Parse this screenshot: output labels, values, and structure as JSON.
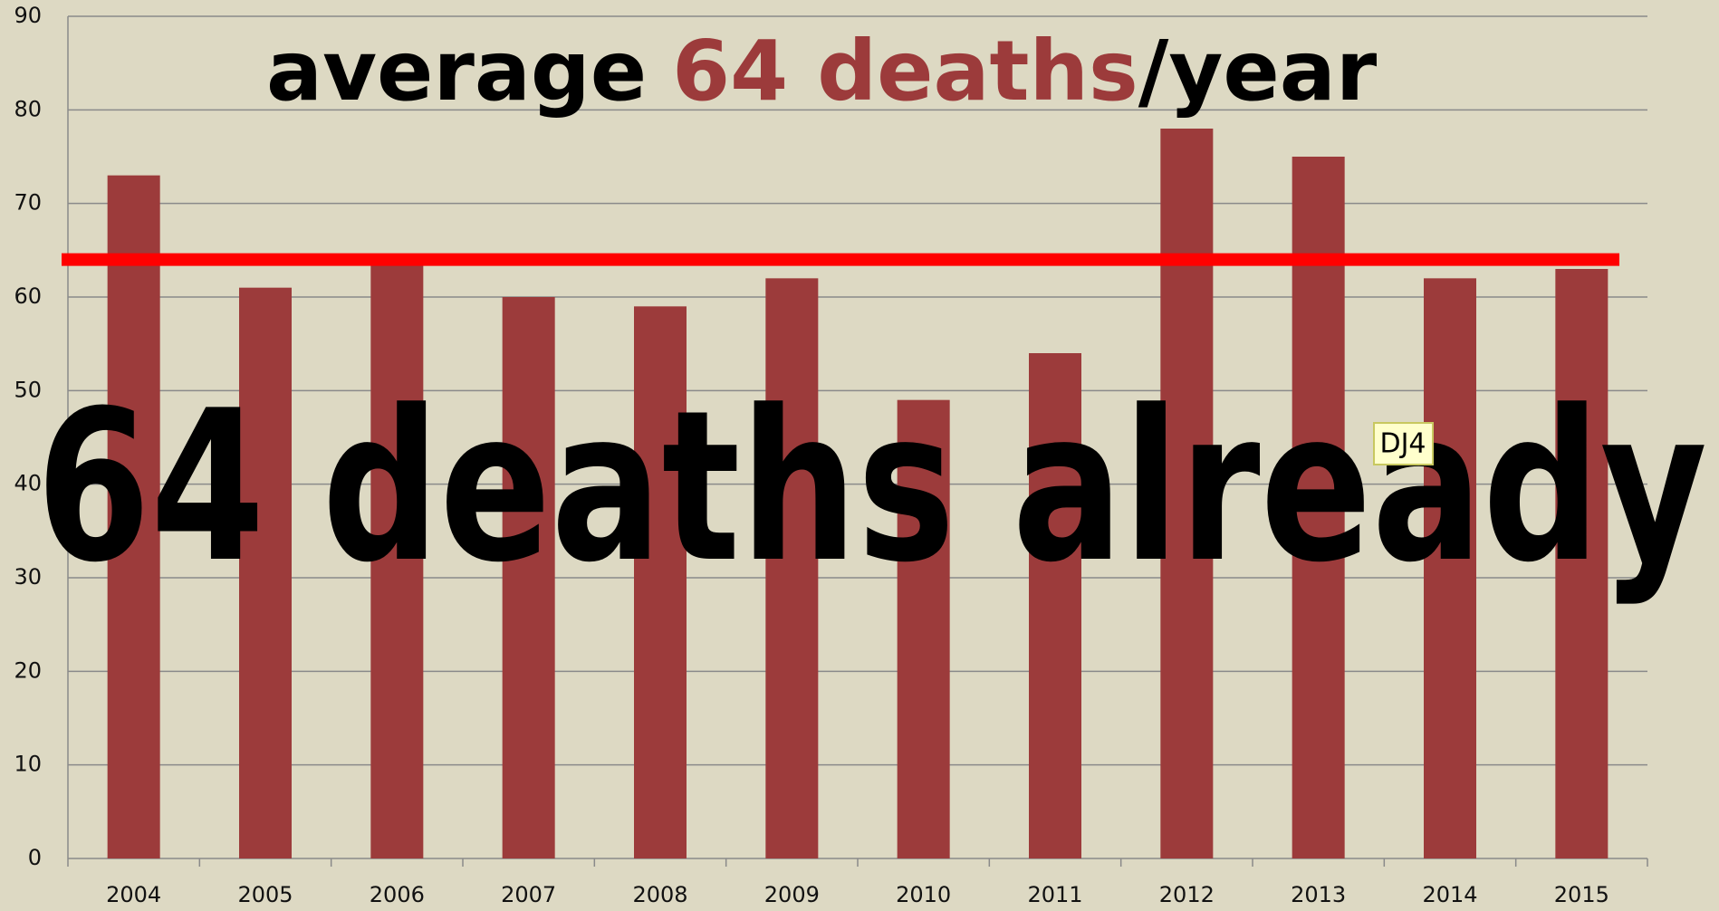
{
  "chart_data": {
    "type": "bar",
    "title_parts": [
      "average",
      "64 deaths",
      "/year"
    ],
    "title_colors": [
      "#000000",
      "#9c3b3b",
      "#000000"
    ],
    "overlay_text": "64 deaths already",
    "badge": "DJ4",
    "categories": [
      "2004",
      "2005",
      "2006",
      "2007",
      "2008",
      "2009",
      "2010",
      "2011",
      "2012",
      "2013",
      "2014",
      "2015"
    ],
    "values": [
      73,
      61,
      64,
      60,
      59,
      62,
      49,
      54,
      78,
      75,
      62,
      63
    ],
    "color": "#9c3b3b",
    "average_line": 64,
    "average_color": "#ff0000",
    "ylim": [
      0,
      90
    ],
    "yticks": [
      0,
      10,
      20,
      30,
      40,
      50,
      60,
      70,
      80,
      90
    ],
    "grid": true
  }
}
